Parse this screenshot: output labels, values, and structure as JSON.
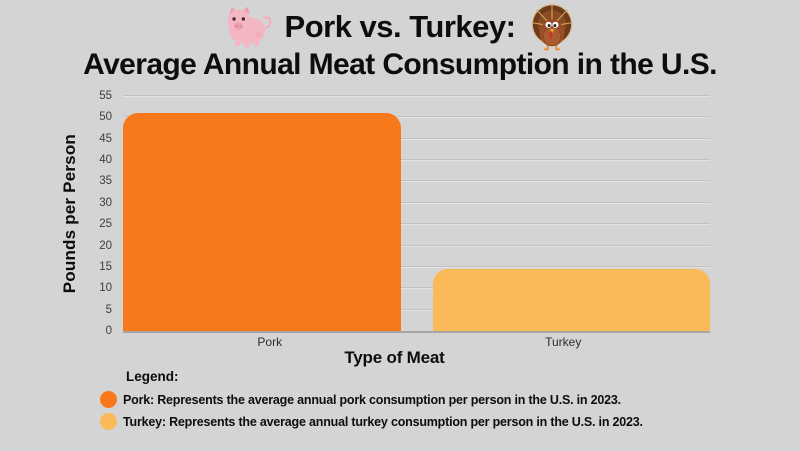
{
  "page": {
    "background_color": "#d4d4d4"
  },
  "header": {
    "title_line1": "Pork vs. Turkey:",
    "title_line2": "Average Annual Meat Consumption in the U.S.",
    "icons": {
      "left": "pig-icon",
      "right": "turkey-icon"
    }
  },
  "chart_data": {
    "type": "bar",
    "title": "Pork vs. Turkey: Average Annual Meat Consumption in the U.S.",
    "categories": [
      "Pork",
      "Turkey"
    ],
    "values": [
      51,
      14.5
    ],
    "xlabel": "Type of Meat",
    "ylabel": "Pounds per Person",
    "ylim": [
      0,
      55
    ],
    "ytick_step": 5,
    "yticks": [
      0,
      5,
      10,
      15,
      20,
      25,
      30,
      35,
      40,
      45,
      50,
      55
    ],
    "grid": true,
    "gridline_color": "#c1c1c1",
    "bar_colors": {
      "Pork": "#f8781c",
      "Turkey": "#fbba58"
    }
  },
  "legend": {
    "heading": "Legend:",
    "items": [
      {
        "name": "Pork",
        "color": "#f8781c",
        "label": "Pork: Represents the average annual pork consumption per person in the U.S. in 2023."
      },
      {
        "name": "Turkey",
        "color": "#fbba58",
        "label": "Turkey: Represents the average annual turkey consumption per person in the U.S. in 2023."
      }
    ]
  }
}
